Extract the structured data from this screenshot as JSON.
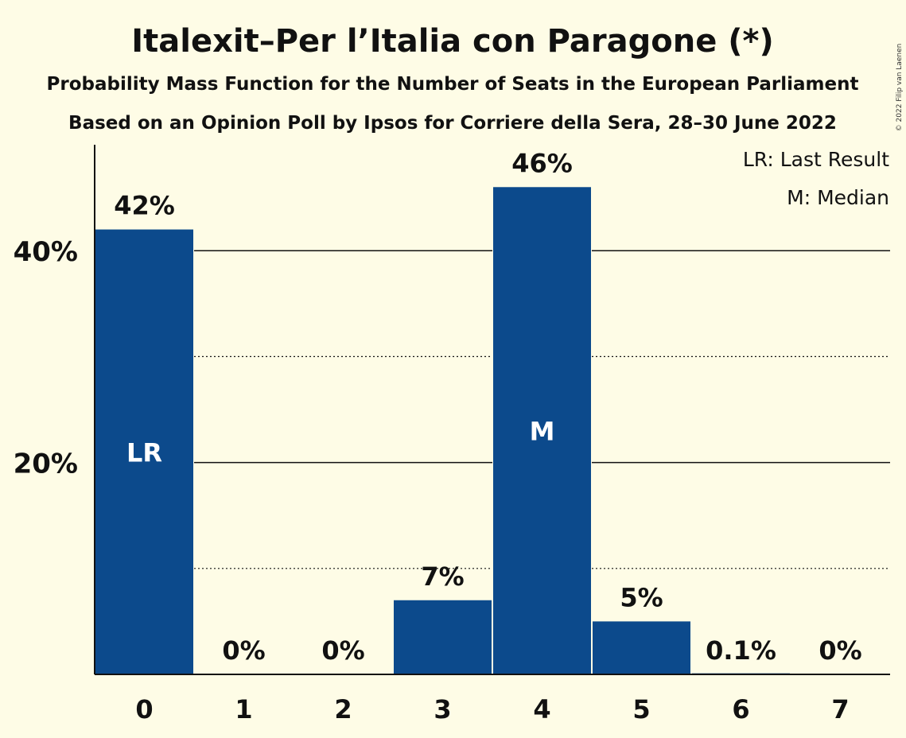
{
  "chart_data": {
    "type": "bar",
    "title": "Italexit–Per l’Italia con Paragone (*)",
    "subtitle": "Probability Mass Function for the Number of Seats in the European Parliament",
    "subtitle2": "Based on an Opinion Poll by Ipsos for Corriere della Sera, 28–30 June 2022",
    "copyright": "© 2022 Filip van Laenen",
    "categories": [
      "0",
      "1",
      "2",
      "3",
      "4",
      "5",
      "6",
      "7"
    ],
    "values": [
      42,
      0,
      0,
      7,
      46,
      5,
      0.1,
      0
    ],
    "value_labels": [
      "42%",
      "0%",
      "0%",
      "7%",
      "46%",
      "5%",
      "0.1%",
      "0%"
    ],
    "bar_markers": {
      "0": "LR",
      "4": "M"
    },
    "ylim": [
      0,
      50
    ],
    "yticks": [
      {
        "value": 20,
        "label": "20%"
      },
      {
        "value": 40,
        "label": "40%"
      }
    ],
    "minor_gridlines": [
      10,
      30
    ],
    "legend": {
      "position": "top-right",
      "entries": [
        "LR: Last Result",
        "M: Median"
      ]
    },
    "colors": {
      "bar": "#0c4a8c",
      "background": "#fefce6",
      "text": "#111111",
      "marker_text": "#ffffff"
    },
    "xlabel": "",
    "ylabel": ""
  }
}
